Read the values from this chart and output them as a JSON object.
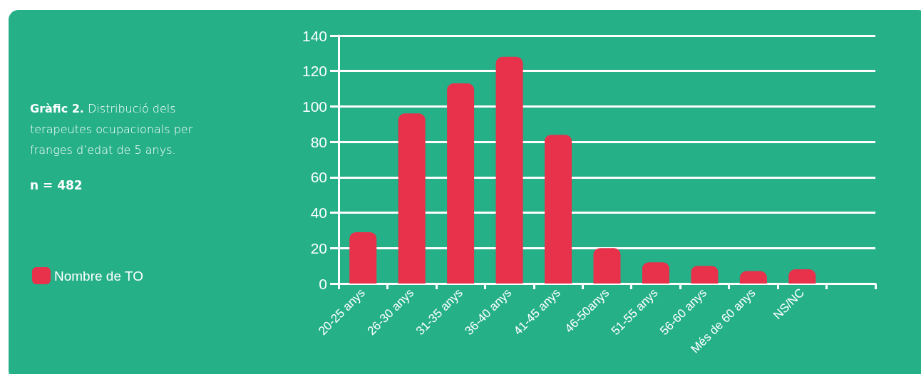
{
  "chart_data": {
    "type": "bar",
    "title": "Gràfic 2. Distribució dels terapeutes ocupacionals per franges d’edat de 5 anys.",
    "annotations": [
      "n = 482"
    ],
    "categories": [
      "20-25 anys",
      "26-30 anys",
      "31-35 anys",
      "36-40 anys",
      "41-45 anys",
      "46-50anys",
      "51-55 anys",
      "56-60 anys",
      "Més de 60 anys",
      "NS/NC",
      null
    ],
    "series": [
      {
        "name": "Nombre de TO",
        "color": "#e8314b",
        "values": [
          29,
          96,
          113,
          128,
          84,
          20,
          12,
          10,
          7,
          8,
          null
        ]
      }
    ],
    "ylim": [
      0,
      140
    ],
    "yticks": [
      0,
      20,
      40,
      60,
      80,
      100,
      120,
      140
    ],
    "grid": "y",
    "legend": "left"
  }
}
